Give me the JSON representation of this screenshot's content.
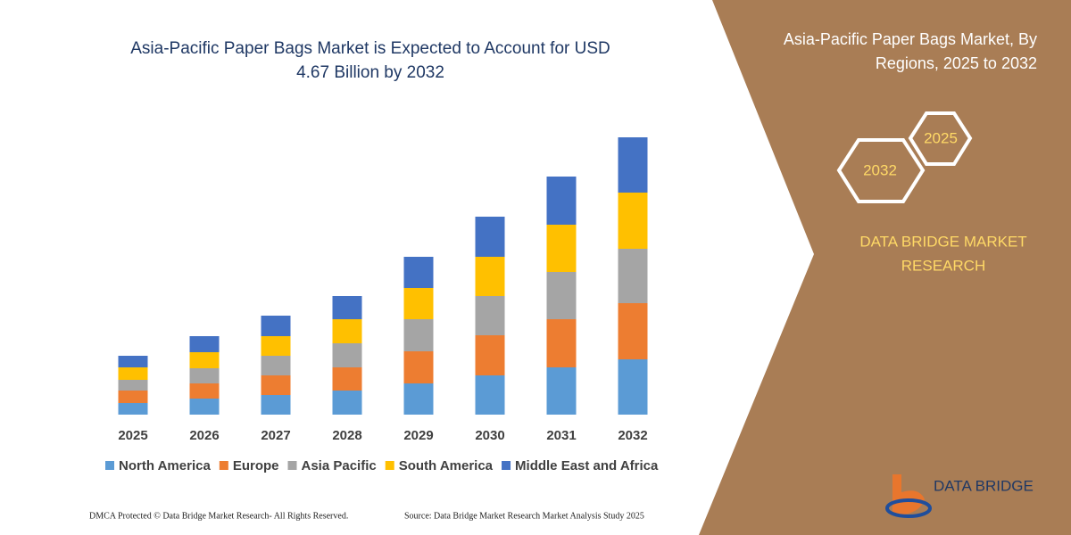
{
  "chart_data": {
    "type": "bar",
    "stacked": true,
    "title": [
      "Asia-Pacific Paper Bags Market is Expected to Account for USD",
      "4.67 Billion by 2032"
    ],
    "categories": [
      "2025",
      "2026",
      "2027",
      "2028",
      "2029",
      "2030",
      "2031",
      "2032"
    ],
    "series": [
      {
        "name": "North America",
        "color": "#5b9bd5",
        "values": [
          1.3,
          1.8,
          2.2,
          2.7,
          3.5,
          4.4,
          5.3,
          6.2
        ]
      },
      {
        "name": "Europe",
        "color": "#ed7d31",
        "values": [
          1.4,
          1.7,
          2.2,
          2.6,
          3.6,
          4.5,
          5.4,
          6.3
        ]
      },
      {
        "name": "Asia Pacific",
        "color": "#a5a5a5",
        "values": [
          1.2,
          1.7,
          2.2,
          2.7,
          3.6,
          4.4,
          5.3,
          6.1
        ]
      },
      {
        "name": "South America",
        "color": "#ffc000",
        "values": [
          1.4,
          1.8,
          2.2,
          2.7,
          3.5,
          4.4,
          5.3,
          6.3
        ]
      },
      {
        "name": "Middle East and Africa",
        "color": "#4472c4",
        "values": [
          1.3,
          1.8,
          2.3,
          2.6,
          3.5,
          4.5,
          5.4,
          6.2
        ]
      }
    ],
    "ylim": [
      0,
      32
    ],
    "grid": false,
    "legend": "bottom"
  },
  "panel": {
    "title": [
      "Asia-Pacific Paper Bags Market, By",
      "Regions, 2025 to 2032"
    ],
    "hexagons": [
      "2025",
      "2032"
    ],
    "brand": [
      "DATA BRIDGE MARKET",
      "RESEARCH"
    ]
  },
  "logo": "DATA BRIDGE",
  "footer": {
    "left": "DMCA Protected © Data Bridge Market Research-  All Rights Reserved.",
    "right": "Source: Data Bridge Market Research  Market Analysis Study 2025"
  }
}
